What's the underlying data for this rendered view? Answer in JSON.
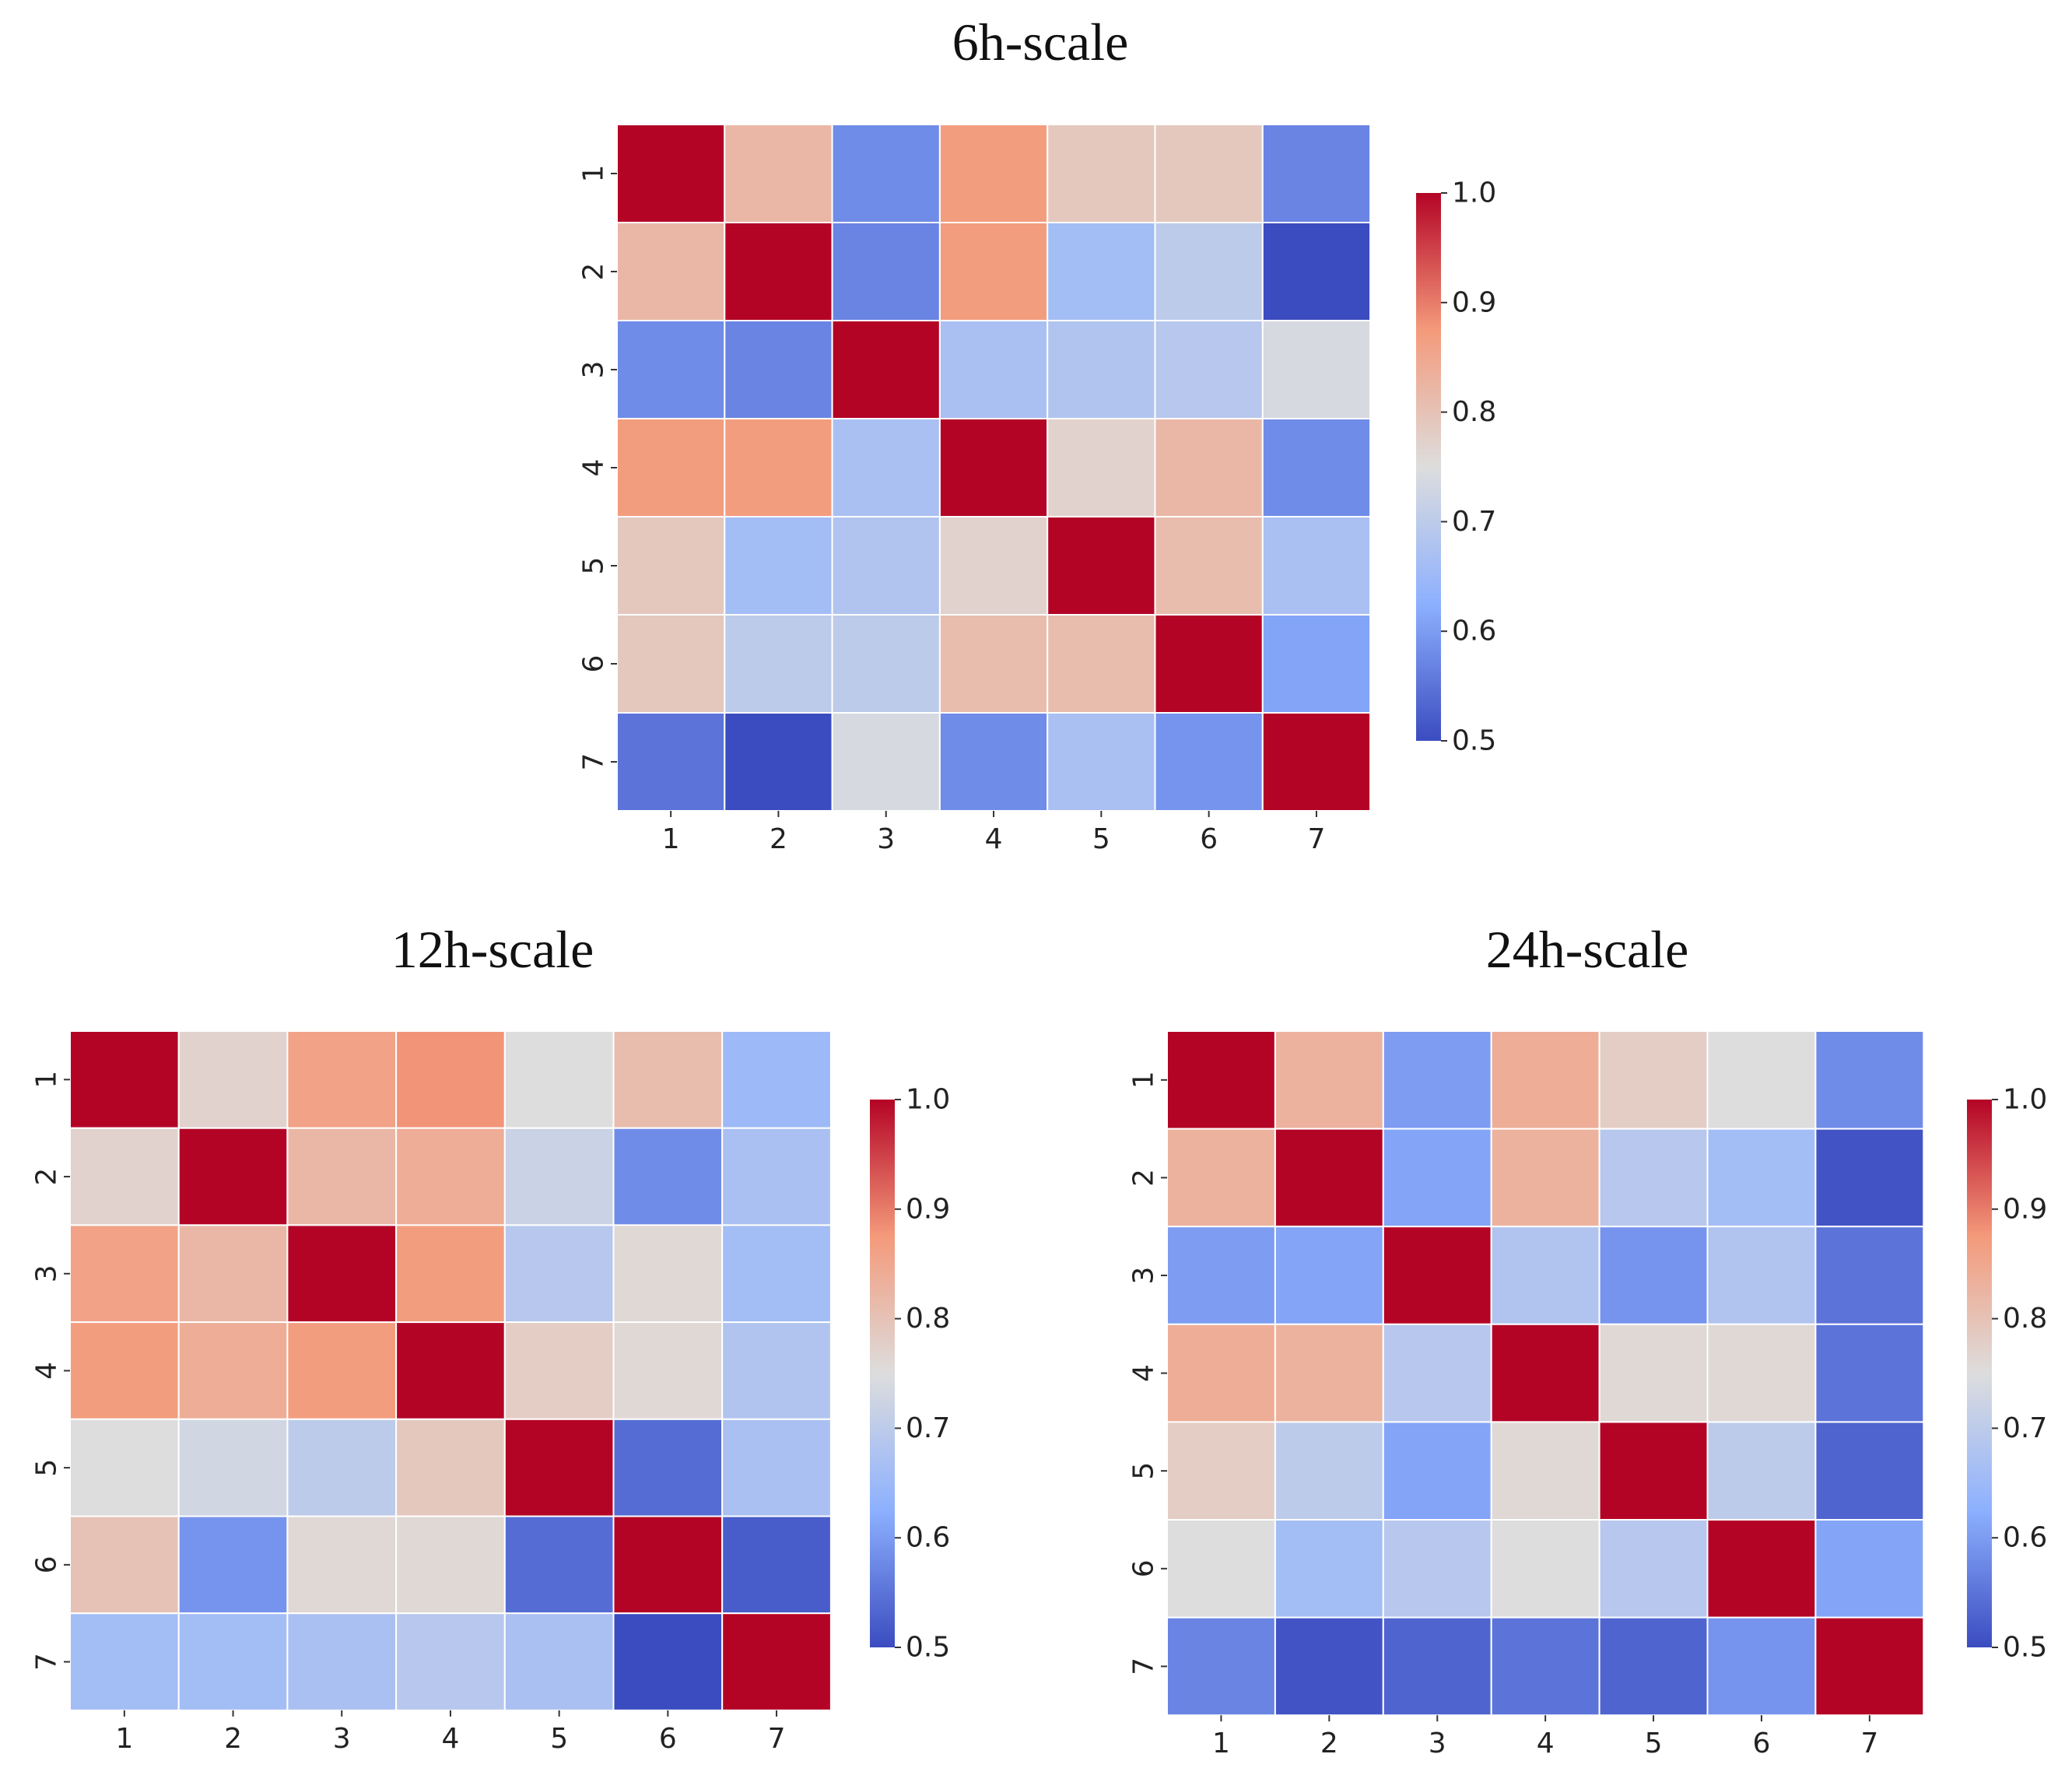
{
  "chart_data": [
    {
      "type": "heatmap",
      "id": "h6",
      "title": "6h-scale",
      "x_categories": [
        "1",
        "2",
        "3",
        "4",
        "5",
        "6",
        "7"
      ],
      "y_categories": [
        "1",
        "2",
        "3",
        "4",
        "5",
        "6",
        "7"
      ],
      "values": [
        [
          1.0,
          0.82,
          0.58,
          0.87,
          0.79,
          0.79,
          0.57
        ],
        [
          0.82,
          1.0,
          0.57,
          0.87,
          0.66,
          0.7,
          0.5
        ],
        [
          0.58,
          0.57,
          1.0,
          0.67,
          0.68,
          0.69,
          0.74
        ],
        [
          0.87,
          0.87,
          0.67,
          1.0,
          0.77,
          0.82,
          0.58
        ],
        [
          0.79,
          0.66,
          0.68,
          0.77,
          1.0,
          0.81,
          0.67
        ],
        [
          0.79,
          0.7,
          0.7,
          0.81,
          0.81,
          1.0,
          0.61
        ],
        [
          0.55,
          0.5,
          0.74,
          0.58,
          0.67,
          0.59,
          1.0
        ]
      ],
      "colorbar": {
        "min": 0.5,
        "max": 1.0,
        "ticks": [
          "1.0",
          "0.9",
          "0.8",
          "0.7",
          "0.6",
          "0.5"
        ]
      }
    },
    {
      "type": "heatmap",
      "id": "h12",
      "title": "12h-scale",
      "x_categories": [
        "1",
        "2",
        "3",
        "4",
        "5",
        "6",
        "7"
      ],
      "y_categories": [
        "1",
        "2",
        "3",
        "4",
        "5",
        "6",
        "7"
      ],
      "values": [
        [
          1.0,
          0.77,
          0.86,
          0.88,
          0.75,
          0.81,
          0.65
        ],
        [
          0.77,
          1.0,
          0.82,
          0.84,
          0.72,
          0.58,
          0.67
        ],
        [
          0.86,
          0.82,
          1.0,
          0.87,
          0.69,
          0.76,
          0.66
        ],
        [
          0.87,
          0.84,
          0.87,
          1.0,
          0.78,
          0.76,
          0.68
        ],
        [
          0.75,
          0.73,
          0.7,
          0.79,
          1.0,
          0.54,
          0.67
        ],
        [
          0.8,
          0.59,
          0.76,
          0.76,
          0.54,
          1.0,
          0.52
        ],
        [
          0.66,
          0.66,
          0.67,
          0.69,
          0.67,
          0.5,
          1.0
        ]
      ],
      "colorbar": {
        "min": 0.5,
        "max": 1.0,
        "ticks": [
          "1.0",
          "0.9",
          "0.8",
          "0.7",
          "0.6",
          "0.5"
        ]
      }
    },
    {
      "type": "heatmap",
      "id": "h24",
      "title": "24h-scale",
      "x_categories": [
        "1",
        "2",
        "3",
        "4",
        "5",
        "6",
        "7"
      ],
      "y_categories": [
        "1",
        "2",
        "3",
        "4",
        "5",
        "6",
        "7"
      ],
      "values": [
        [
          1.0,
          0.83,
          0.6,
          0.84,
          0.78,
          0.75,
          0.58
        ],
        [
          0.83,
          1.0,
          0.61,
          0.83,
          0.69,
          0.66,
          0.51
        ],
        [
          0.6,
          0.61,
          1.0,
          0.68,
          0.59,
          0.68,
          0.55
        ],
        [
          0.84,
          0.83,
          0.69,
          1.0,
          0.76,
          0.76,
          0.55
        ],
        [
          0.78,
          0.7,
          0.61,
          0.76,
          1.0,
          0.7,
          0.53
        ],
        [
          0.75,
          0.66,
          0.69,
          0.75,
          0.69,
          1.0,
          0.61
        ],
        [
          0.57,
          0.51,
          0.53,
          0.55,
          0.53,
          0.59,
          1.0
        ]
      ],
      "colorbar": {
        "min": 0.5,
        "max": 1.0,
        "ticks": [
          "1.0",
          "0.9",
          "0.8",
          "0.7",
          "0.6",
          "0.5"
        ]
      }
    }
  ]
}
